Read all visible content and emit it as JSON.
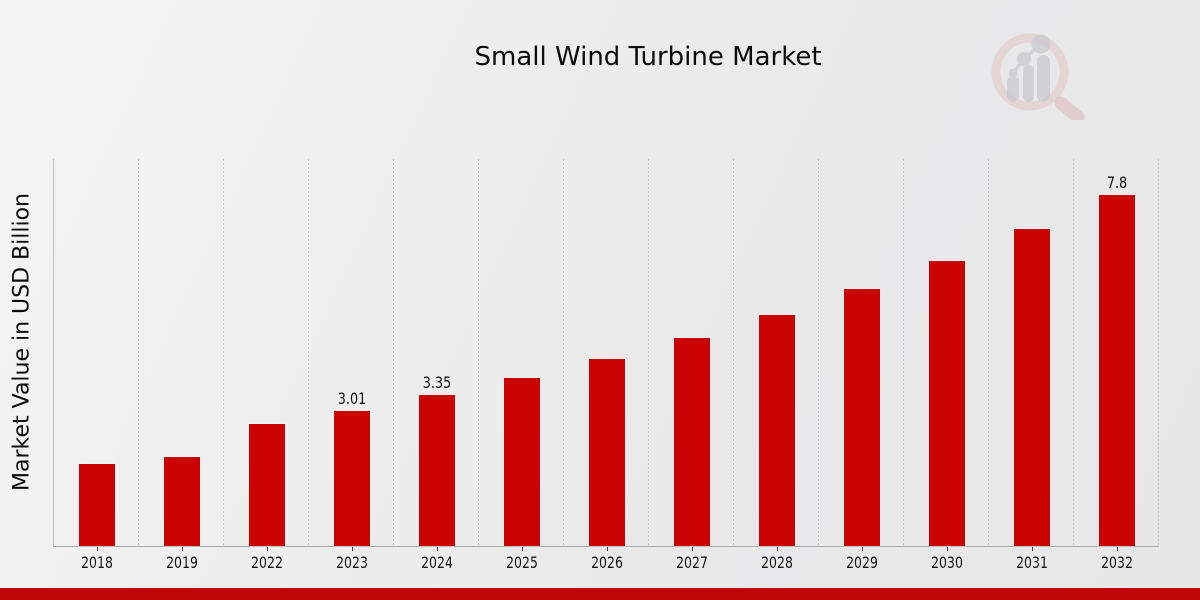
{
  "chart_data": {
    "type": "bar",
    "title": "Small Wind Turbine Market",
    "xlabel": "",
    "ylabel": "Market Value in USD Billion",
    "categories": [
      "2018",
      "2019",
      "2022",
      "2023",
      "2024",
      "2025",
      "2026",
      "2027",
      "2028",
      "2029",
      "2030",
      "2031",
      "2032"
    ],
    "values": [
      1.83,
      1.97,
      2.72,
      3.01,
      3.35,
      3.73,
      4.15,
      4.62,
      5.13,
      5.7,
      6.34,
      7.04,
      7.8
    ],
    "data_labels": {
      "2023": "3.01",
      "2024": "3.35",
      "2032": "7.8"
    },
    "ylim": [
      0,
      8.6
    ],
    "grid": "vertical-dashed",
    "legend": "none",
    "bar_color": "#cb0202"
  },
  "colors": {
    "bar": "#cb0202",
    "footer_band": "#c00505",
    "grid": "#c5c5c8",
    "text": "#111111"
  },
  "watermark": {
    "icon": "magnifier-bar-chart-logo-icon"
  }
}
